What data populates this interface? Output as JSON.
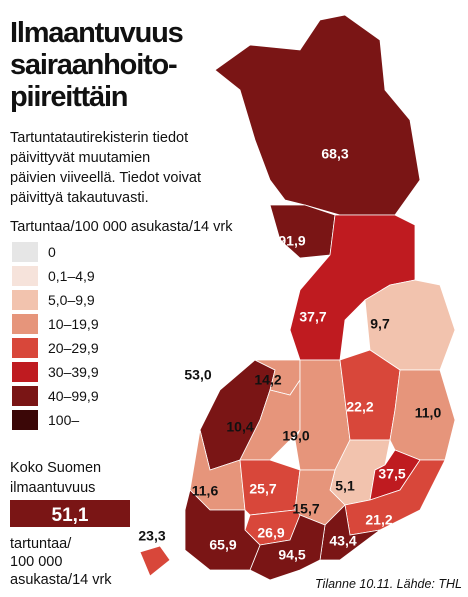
{
  "header": {
    "title": [
      "Ilmaantuvuus",
      "sairaanhoito-",
      "piireittäin"
    ],
    "description": [
      "Tartuntatautirekisterin tiedot",
      "päivittyvät muutamien",
      "päivien viiveellä. Tiedot voivat",
      "päivittyä takautuvasti."
    ]
  },
  "legend": {
    "title": "Tartuntaa/100 000 asukasta/14 vrk",
    "items": [
      {
        "label": "0",
        "color": "#e6e6e6"
      },
      {
        "label": "0,1–4,9",
        "color": "#f6e3db"
      },
      {
        "label": "5,0–9,9",
        "color": "#f2c3ae"
      },
      {
        "label": "10–19,9",
        "color": "#e6957b"
      },
      {
        "label": "20–29,9",
        "color": "#d8473a"
      },
      {
        "label": "30–39,9",
        "color": "#bf1b20"
      },
      {
        "label": "40–99,9",
        "color": "#7a1515"
      },
      {
        "label": "100–",
        "color": "#3b0707"
      }
    ]
  },
  "summary": {
    "label": [
      "Koko Suomen",
      "ilmaantuvuus"
    ],
    "value": "51,1",
    "unit": [
      "tartuntaa/",
      "100 000",
      "asukasta/14 vrk"
    ]
  },
  "regions": [
    {
      "label": "68,3",
      "color": "#7a1515"
    },
    {
      "label": "91,9",
      "color": "#7a1515"
    },
    {
      "label": "37,7",
      "color": "#bf1b20"
    },
    {
      "label": "9,7",
      "color": "#f2c3ae"
    },
    {
      "label": "53,0",
      "color": "#7a1515"
    },
    {
      "label": "14,2",
      "color": "#e6957b"
    },
    {
      "label": "10,4",
      "color": "#e6957b"
    },
    {
      "label": "19,0",
      "color": "#e6957b"
    },
    {
      "label": "22,2",
      "color": "#d8473a"
    },
    {
      "label": "11,0",
      "color": "#e6957b"
    },
    {
      "label": "11,6",
      "color": "#e6957b"
    },
    {
      "label": "25,7",
      "color": "#d8473a"
    },
    {
      "label": "5,1",
      "color": "#f2c3ae"
    },
    {
      "label": "37,5",
      "color": "#bf1b20"
    },
    {
      "label": "15,7",
      "color": "#e6957b"
    },
    {
      "label": "26,9",
      "color": "#d8473a"
    },
    {
      "label": "21,2",
      "color": "#d8473a"
    },
    {
      "label": "43,4",
      "color": "#7a1515"
    },
    {
      "label": "94,5",
      "color": "#7a1515"
    },
    {
      "label": "65,9",
      "color": "#7a1515"
    },
    {
      "label": "23,3",
      "color": "#d8473a"
    }
  ],
  "footer": "Tilanne 10.11. Lähde: THL"
}
